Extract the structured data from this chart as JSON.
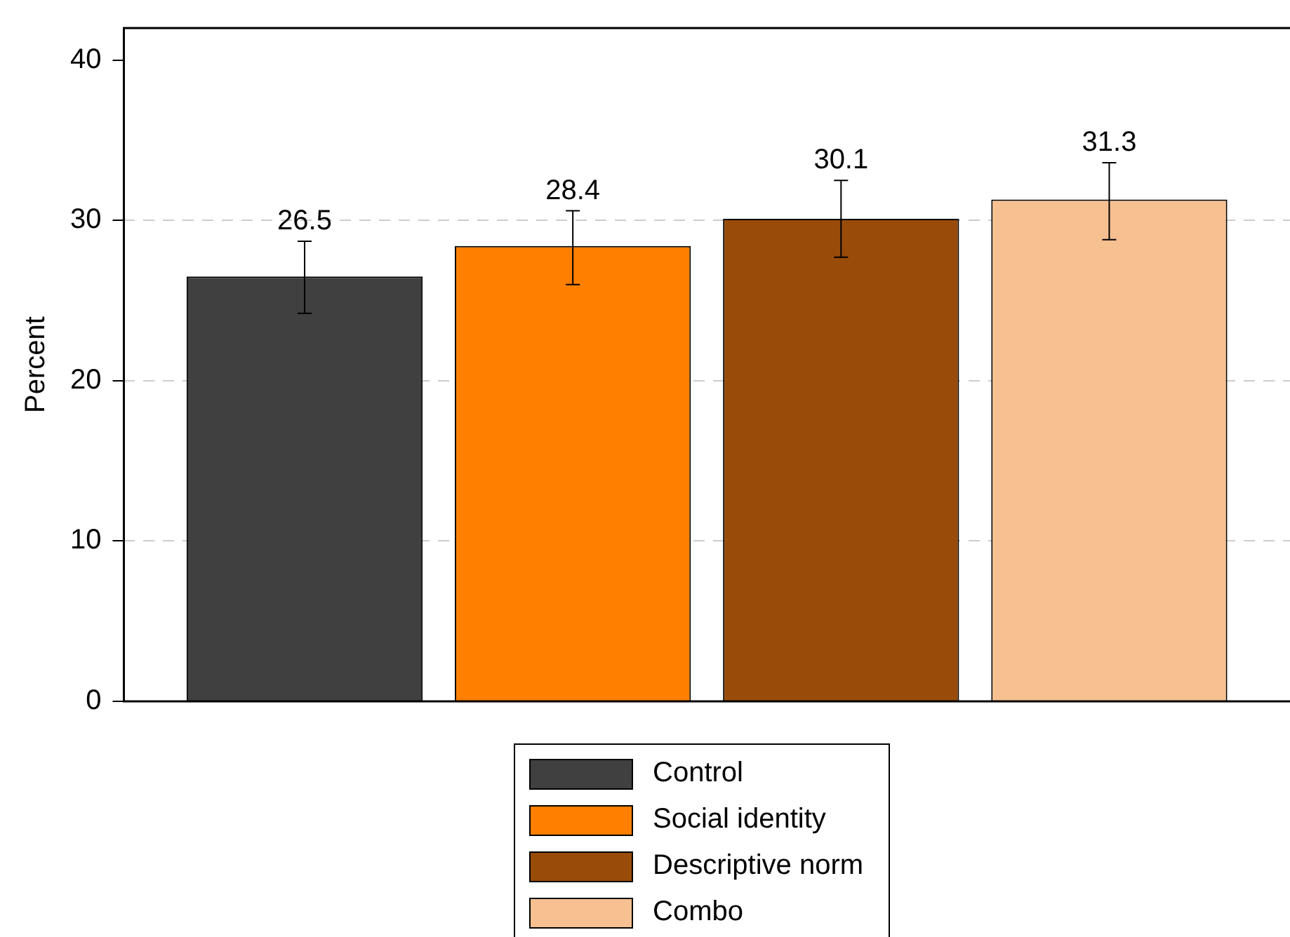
{
  "chart_data": {
    "type": "bar",
    "ylabel": "Percent",
    "categories": [
      null
    ],
    "series": [
      {
        "name": "Control",
        "color": "#404040",
        "values": [
          26.5
        ],
        "errors": [
          [
            24.2,
            28.7
          ]
        ]
      },
      {
        "name": "Social identity",
        "color": "#ff7f00",
        "values": [
          28.4
        ],
        "errors": [
          [
            26.0,
            30.6
          ]
        ]
      },
      {
        "name": "Descriptive norm",
        "color": "#994c09",
        "values": [
          30.1
        ],
        "errors": [
          [
            27.7,
            32.5
          ]
        ]
      },
      {
        "name": "Combo",
        "color": "#f7c091",
        "values": [
          31.3
        ],
        "errors": [
          [
            28.8,
            33.6
          ]
        ]
      }
    ],
    "ylim": [
      0,
      42
    ],
    "yticks": [
      0,
      10,
      20,
      30,
      40
    ],
    "grid": "y",
    "legend": "bottom",
    "data_labels": true
  }
}
